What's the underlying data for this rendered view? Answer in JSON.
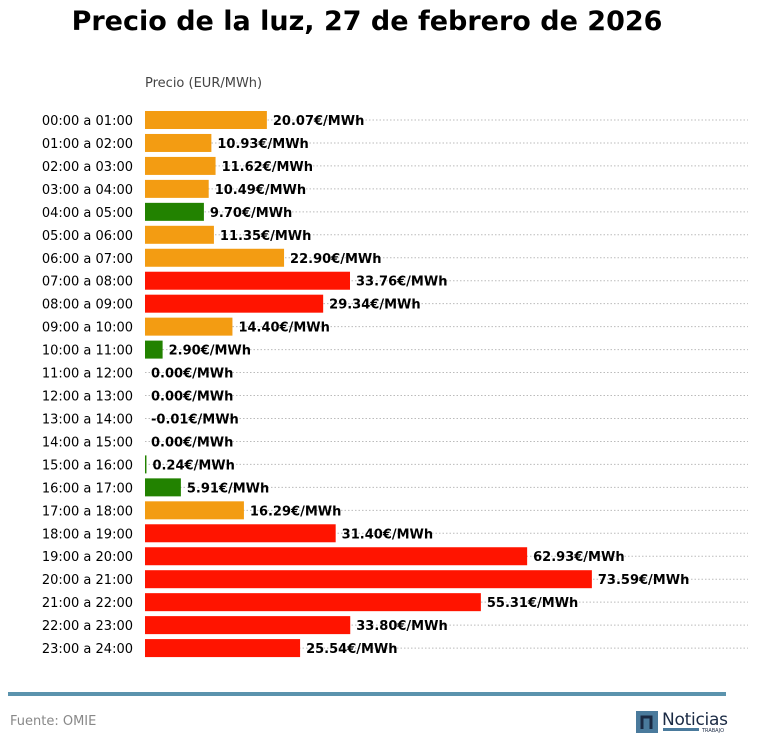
{
  "chart_data": {
    "type": "bar",
    "orientation": "horizontal",
    "title": "Precio de la luz, 27 de febrero de 2026",
    "xlabel": "Precio (EUR/MWh)",
    "value_suffix": "€/MWh",
    "xlim": [
      0,
      99.3
    ],
    "grid": "horizontal dotted",
    "categories": [
      "00:00 a 01:00",
      "01:00 a 02:00",
      "02:00 a 03:00",
      "03:00 a 04:00",
      "04:00 a 05:00",
      "05:00 a 06:00",
      "06:00 a 07:00",
      "07:00 a 08:00",
      "08:00 a 09:00",
      "09:00 a 10:00",
      "10:00 a 11:00",
      "11:00 a 12:00",
      "12:00 a 13:00",
      "13:00 a 14:00",
      "14:00 a 15:00",
      "15:00 a 16:00",
      "16:00 a 17:00",
      "17:00 a 18:00",
      "18:00 a 19:00",
      "19:00 a 20:00",
      "20:00 a 21:00",
      "21:00 a 22:00",
      "22:00 a 23:00",
      "23:00 a 24:00"
    ],
    "values": [
      20.07,
      10.93,
      11.62,
      10.49,
      9.7,
      11.35,
      22.9,
      33.76,
      29.34,
      14.4,
      2.9,
      0.0,
      0.0,
      -0.01,
      0.0,
      0.24,
      5.91,
      16.29,
      31.4,
      62.93,
      73.59,
      55.31,
      33.8,
      25.54
    ],
    "labels": [
      "20.07€/MWh",
      "10.93€/MWh",
      "11.62€/MWh",
      "10.49€/MWh",
      "9.70€/MWh",
      "11.35€/MWh",
      "22.90€/MWh",
      "33.76€/MWh",
      "29.34€/MWh",
      "14.40€/MWh",
      "2.90€/MWh",
      "0.00€/MWh",
      "0.00€/MWh",
      "-0.01€/MWh",
      "0.00€/MWh",
      "0.24€/MWh",
      "5.91€/MWh",
      "16.29€/MWh",
      "31.40€/MWh",
      "62.93€/MWh",
      "73.59€/MWh",
      "55.31€/MWh",
      "33.80€/MWh",
      "25.54€/MWh"
    ],
    "bar_colors": [
      "orange",
      "orange",
      "orange",
      "orange",
      "green",
      "orange",
      "orange",
      "red",
      "red",
      "orange",
      "green",
      "green",
      "green",
      "green",
      "green",
      "green",
      "green",
      "orange",
      "red",
      "red",
      "red",
      "red",
      "red",
      "red"
    ]
  },
  "colors": {
    "green": "#228200",
    "orange": "#f39c12",
    "red": "#ff1400",
    "rule": "#5b93ad"
  },
  "footer": {
    "source": "Fuente: OMIE",
    "logo_text": "Noticias",
    "logo_subtext": "TRABAJO"
  }
}
